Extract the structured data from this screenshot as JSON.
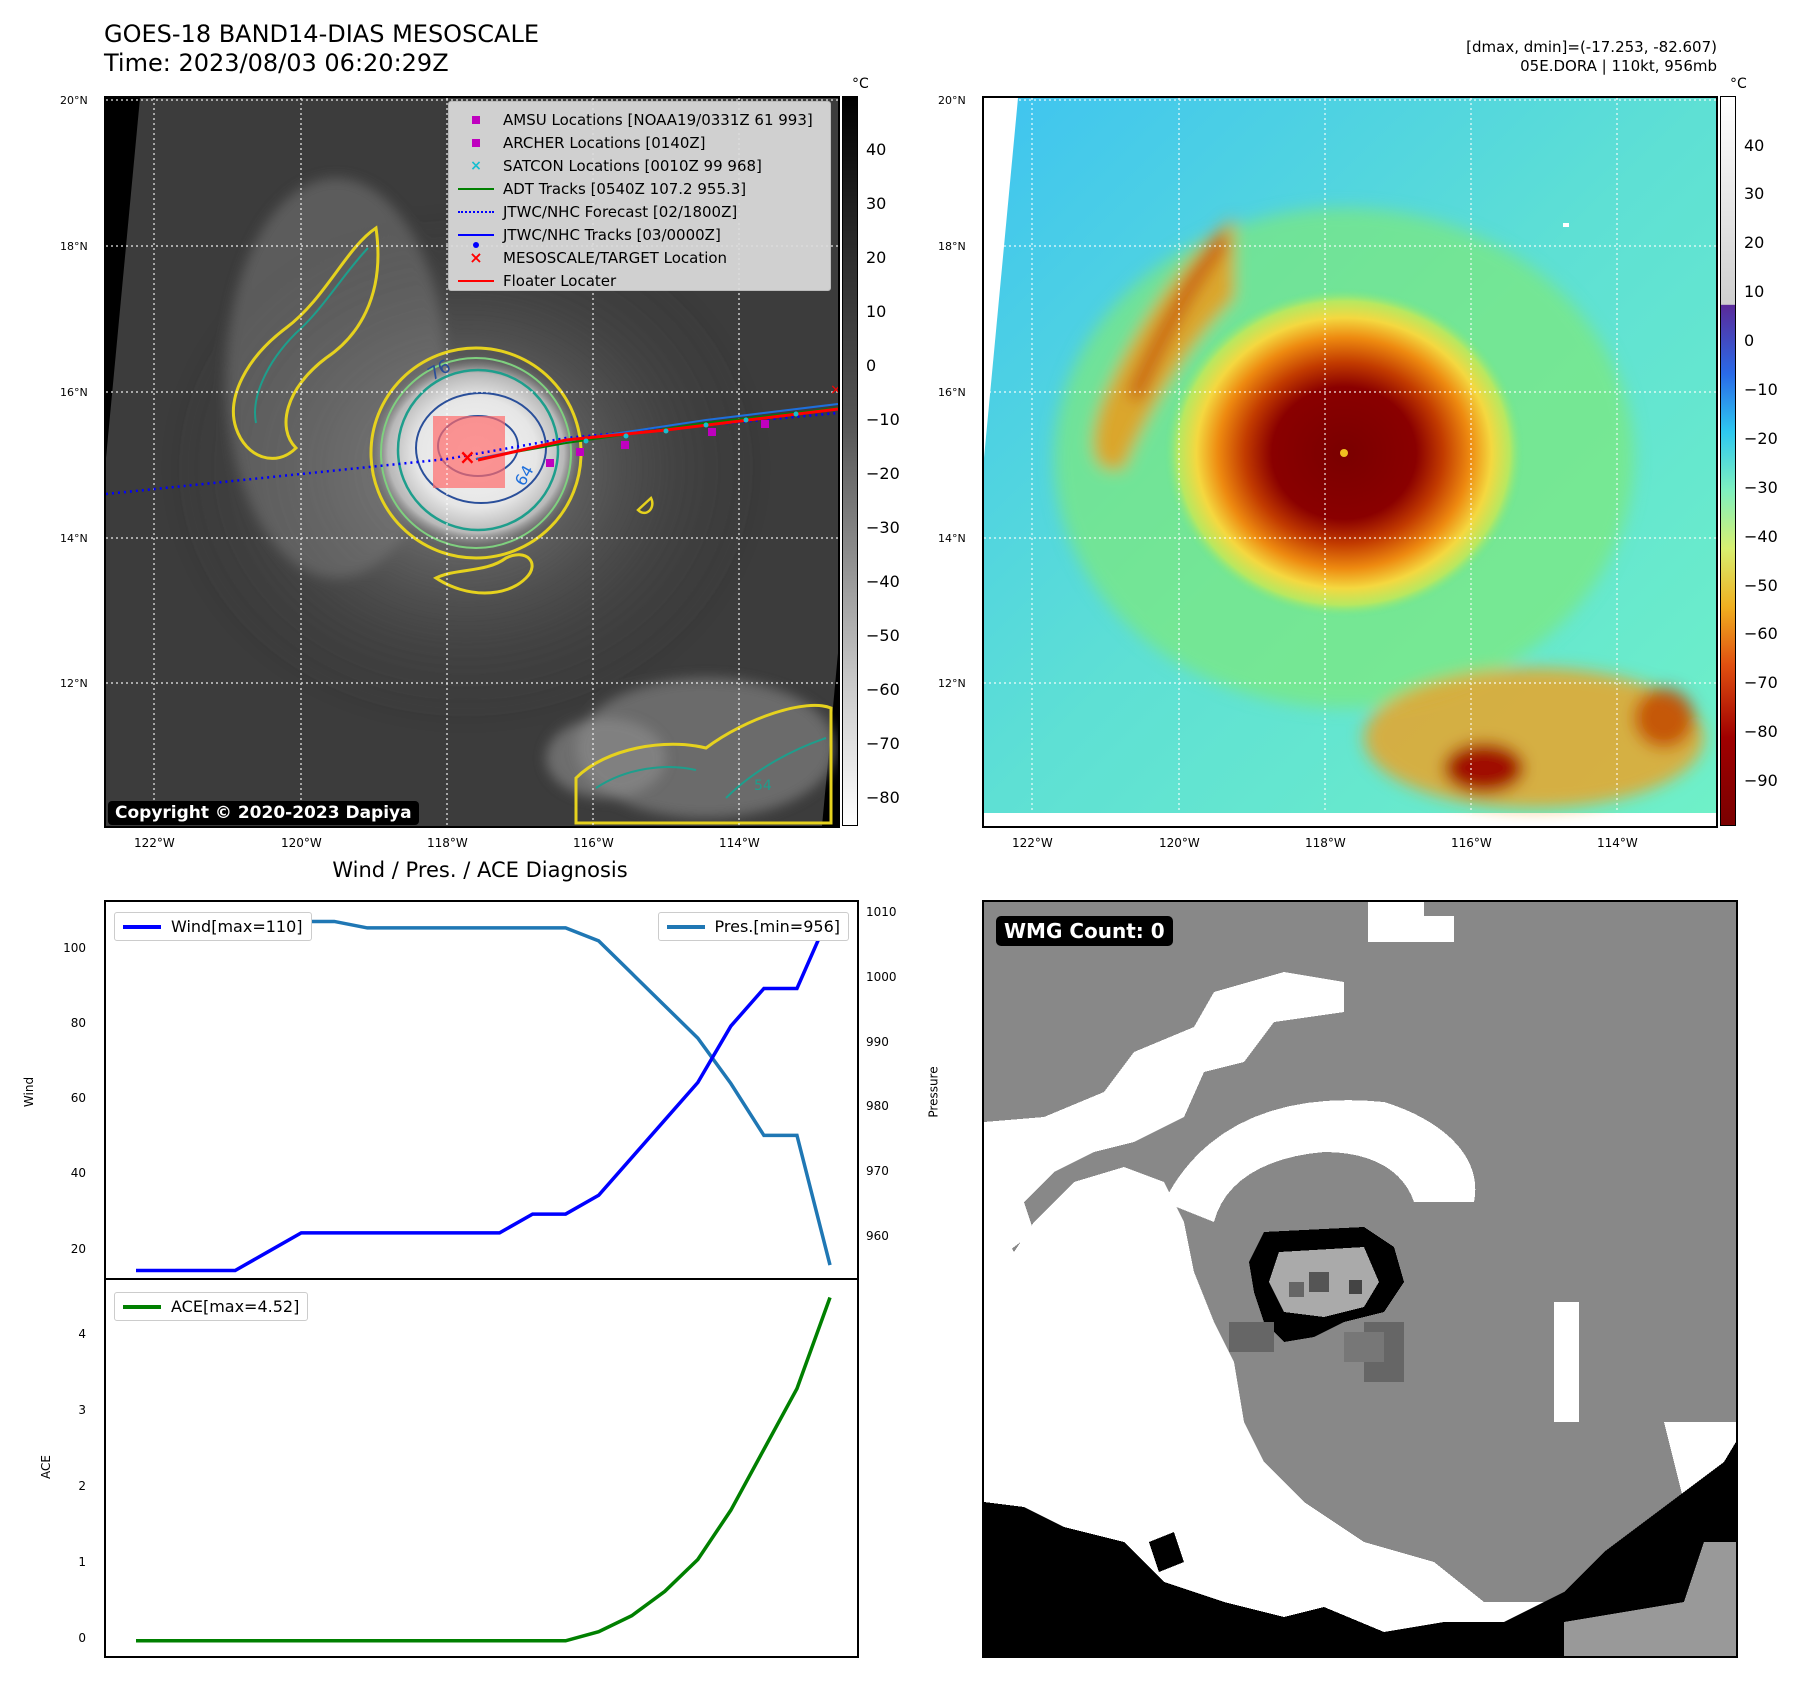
{
  "header": {
    "title_line1": "GOES-18 BAND14-DIAS MESOSCALE",
    "title_line2": "Time: 2023/08/03 06:20:29Z",
    "right_line1": "[dmax, dmin]=(-17.253, -82.607)",
    "right_line2": "05E.DORA | 110kt, 956mb"
  },
  "map_panels": {
    "lat_labels": [
      "20°N",
      "18°N",
      "16°N",
      "14°N",
      "12°N"
    ],
    "lon_labels": [
      "122°W",
      "120°W",
      "118°W",
      "116°W",
      "114°W"
    ],
    "unit": "°C"
  },
  "ir_colorbar_ticks": [
    "40",
    "30",
    "20",
    "10",
    "0",
    "−10",
    "−20",
    "−30",
    "−40",
    "−50",
    "−60",
    "−70",
    "−80"
  ],
  "color_colorbar_ticks": [
    "40",
    "30",
    "20",
    "10",
    "0",
    "−10",
    "−20",
    "−30",
    "−40",
    "−50",
    "−60",
    "−70",
    "−80",
    "−90"
  ],
  "contour_labels": [
    "76",
    "64",
    "54"
  ],
  "legend": [
    {
      "label": "AMSU Locations [NOAA19/0331Z 61 993]",
      "marker": "square",
      "color": "#bf00bf"
    },
    {
      "label": "ARCHER Locations [0140Z]",
      "marker": "square",
      "color": "#bf00bf"
    },
    {
      "label": "SATCON Locations [0010Z 99 968]",
      "marker": "x",
      "color": "#17becf"
    },
    {
      "label": "ADT Tracks [0540Z 107.2 955.3]",
      "marker": "line",
      "color": "#008000"
    },
    {
      "label": "JTWC/NHC Forecast [02/1800Z]",
      "marker": "dotted",
      "color": "#0000ff"
    },
    {
      "label": "JTWC/NHC Tracks [03/0000Z]",
      "marker": "line-dot",
      "color": "#0000ff"
    },
    {
      "label": "MESOSCALE/TARGET Location",
      "marker": "x",
      "color": "#ff0000"
    },
    {
      "label": "Floater Locater",
      "marker": "line",
      "color": "#ff0000"
    }
  ],
  "copyright": "Copyright © 2020-2023 Dapiya",
  "wmg_label": "WMG Count: 0",
  "colors": {
    "wind": "#0000ff",
    "pressure": "#1f77b4",
    "ace": "#008000",
    "forecast_track": "#0000ff",
    "floater": "#ff0000"
  },
  "chart_data": [
    {
      "type": "line",
      "title": "Wind / Pres. / ACE Diagnosis",
      "ylabel": "Wind",
      "y2label": "Pressure",
      "ylim": [
        13,
        113
      ],
      "y2lim": [
        954,
        1012
      ],
      "yticks": [
        20,
        40,
        60,
        80,
        100
      ],
      "y2ticks": [
        960,
        970,
        980,
        990,
        1000,
        1010
      ],
      "x": [
        0,
        1,
        2,
        3,
        4,
        5,
        6,
        7,
        8,
        9,
        10,
        11,
        12,
        13,
        14,
        15,
        16,
        17,
        18,
        19,
        20,
        21
      ],
      "series": [
        {
          "name": "Wind[max=110]",
          "axis": "left",
          "values": [
            15,
            15,
            15,
            15,
            20,
            25,
            25,
            25,
            25,
            25,
            25,
            25,
            30,
            30,
            35,
            45,
            55,
            65,
            80,
            90,
            90,
            110
          ]
        },
        {
          "name": "Pres.[min=956]",
          "axis": "right",
          "values": [
            1010,
            1010,
            1010,
            1010,
            1009,
            1009,
            1009,
            1008,
            1008,
            1008,
            1008,
            1008,
            1008,
            1008,
            1006,
            1001,
            996,
            991,
            984,
            976,
            976,
            956
          ]
        }
      ],
      "legend_position": [
        "upper left",
        "upper right"
      ]
    },
    {
      "type": "line",
      "ylabel": "ACE",
      "ylim": [
        -0.2,
        4.75
      ],
      "yticks": [
        0,
        1,
        2,
        3,
        4
      ],
      "x": [
        0,
        1,
        2,
        3,
        4,
        5,
        6,
        7,
        8,
        9,
        10,
        11,
        12,
        13,
        14,
        15,
        16,
        17,
        18,
        19,
        20,
        21
      ],
      "series": [
        {
          "name": "ACE[max=4.52]",
          "values": [
            0,
            0,
            0,
            0,
            0,
            0,
            0,
            0,
            0,
            0,
            0,
            0,
            0,
            0,
            0.12,
            0.33,
            0.65,
            1.07,
            1.72,
            2.52,
            3.32,
            4.52
          ]
        }
      ],
      "legend_position": "upper left"
    }
  ]
}
